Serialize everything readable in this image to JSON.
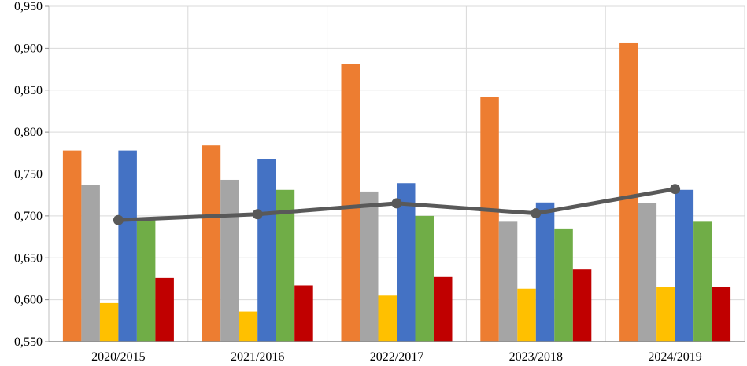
{
  "chart_data": {
    "type": "bar",
    "categories": [
      "2020/2015",
      "2021/2016",
      "2022/2017",
      "2023/2018",
      "2024/2019"
    ],
    "series": [
      {
        "type": "bar",
        "color": "#ED7D31",
        "values": [
          0.778,
          0.784,
          0.881,
          0.842,
          0.906
        ]
      },
      {
        "type": "bar",
        "color": "#A5A5A5",
        "values": [
          0.737,
          0.743,
          0.729,
          0.693,
          0.715
        ]
      },
      {
        "type": "bar",
        "color": "#FFC000",
        "values": [
          0.596,
          0.586,
          0.605,
          0.613,
          0.615
        ]
      },
      {
        "type": "bar",
        "color": "#4472C4",
        "values": [
          0.778,
          0.768,
          0.739,
          0.716,
          0.731
        ]
      },
      {
        "type": "bar",
        "color": "#70AD47",
        "values": [
          0.697,
          0.731,
          0.7,
          0.685,
          0.693
        ]
      },
      {
        "type": "bar",
        "color": "#C00000",
        "values": [
          0.626,
          0.617,
          0.627,
          0.636,
          0.615
        ]
      },
      {
        "type": "line",
        "color": "#595959",
        "values": [
          0.695,
          0.702,
          0.715,
          0.703,
          0.732
        ]
      }
    ],
    "ylim": [
      0.55,
      0.95
    ],
    "y_ticks": [
      0.55,
      0.6,
      0.65,
      0.7,
      0.75,
      0.8,
      0.85,
      0.9,
      0.95
    ],
    "y_tick_labels": [
      "0,550",
      "0,600",
      "0,650",
      "0,700",
      "0,750",
      "0,800",
      "0,850",
      "0,900",
      "0,950"
    ],
    "title": "",
    "xlabel": "",
    "ylabel": "",
    "grid": true,
    "legend": "none"
  }
}
